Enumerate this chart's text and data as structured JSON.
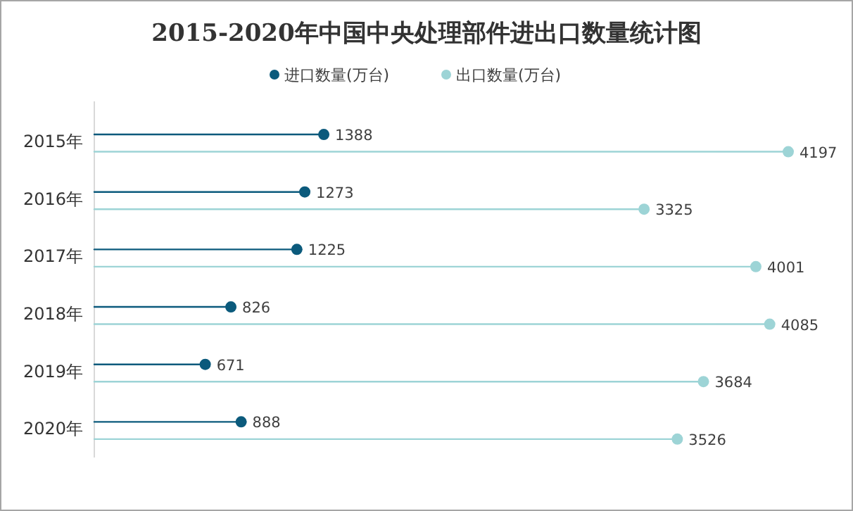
{
  "chart_data": {
    "type": "lollipop",
    "orientation": "horizontal",
    "title": "2015-2020年中国中央处理部件进出口数量统计图",
    "categories": [
      "2015年",
      "2016年",
      "2017年",
      "2018年",
      "2019年",
      "2020年"
    ],
    "series": [
      {
        "name": "进口数量(万台)",
        "color": "#0b5a7c",
        "values": [
          1388,
          1273,
          1225,
          826,
          671,
          888
        ]
      },
      {
        "name": "出口数量(万台)",
        "color": "#9dd4d6",
        "values": [
          4197,
          3325,
          4001,
          4085,
          3684,
          3526
        ]
      }
    ],
    "data_labels": true,
    "legend": "top",
    "marker": "circle"
  }
}
